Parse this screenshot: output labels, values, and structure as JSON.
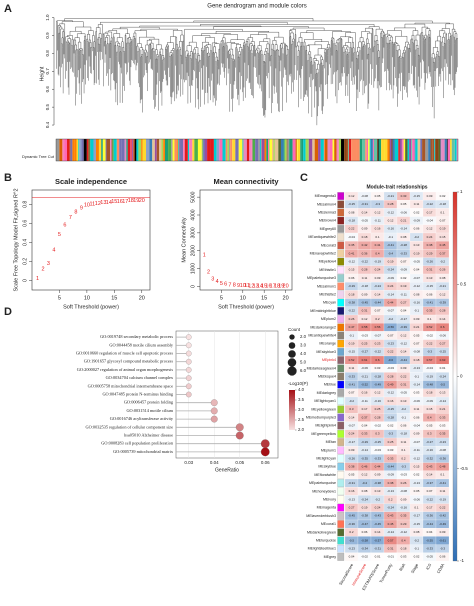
{
  "chart_data": [
    {
      "type": "dendrogram",
      "panel": "A",
      "title": "Gene dendrogram and module colors",
      "ylabel": "Height",
      "ylim": [
        0.35,
        1.02
      ],
      "yticks": [
        0.4,
        0.5,
        0.6,
        0.7,
        0.8,
        0.9,
        {
          "value": 1,
          "label": "1.0"
        }
      ],
      "colorbar_label": "Dynamic Tree Cut"
    },
    {
      "type": "scatter",
      "panel": "B",
      "title": "Scale independence",
      "xlabel": "Soft Threshold (power)",
      "ylabel": "Scale Free Topology Model Fit,signed R^2",
      "color": "#e41a1c",
      "x": [
        1,
        2,
        3,
        4,
        5,
        6,
        7,
        8,
        9,
        10,
        11,
        12,
        13,
        14,
        15,
        16,
        17,
        18,
        19,
        20
      ],
      "values": [
        0.02,
        0.12,
        0.18,
        0.32,
        0.48,
        0.58,
        0.66,
        0.72,
        0.76,
        0.79,
        0.8,
        0.81,
        0.82,
        0.82,
        0.83,
        0.83,
        0.83,
        0.84,
        0.84,
        0.84
      ],
      "hline": 0.87,
      "xlim": [
        0,
        21.5
      ],
      "xticks": [
        5,
        10,
        15,
        20
      ],
      "ylim": [
        -0.1,
        0.95
      ],
      "yticks": [
        0,
        0.2,
        0.4,
        0.6,
        0.8
      ]
    },
    {
      "type": "scatter",
      "title": "Mean connectivity",
      "xlabel": "Soft Threshold (power)",
      "ylabel": "Mean Connectivity",
      "color": "#e41a1c",
      "x": [
        1,
        2,
        3,
        4,
        5,
        6,
        7,
        8,
        9,
        10,
        11,
        12,
        13,
        14,
        15,
        16,
        17,
        18,
        19,
        20
      ],
      "values": [
        1750,
        800,
        420,
        260,
        170,
        120,
        90,
        70,
        55,
        45,
        38,
        32,
        28,
        25,
        22,
        20,
        18,
        16,
        15,
        14
      ],
      "xlim": [
        0,
        21.5
      ],
      "xticks": [
        5,
        10,
        15,
        20
      ],
      "ylim": [
        -200,
        5400
      ],
      "yticks": [
        0,
        1000,
        2000,
        3000,
        4000,
        5000
      ]
    },
    {
      "type": "heatmap",
      "panel": "C",
      "title": "Module-trait relationships",
      "columns": [
        "StromalScore",
        "ImmuneScore",
        "ESTIMATEScore",
        "TumorPurity",
        "Risk",
        "Stage",
        "ICS",
        "CD8A"
      ],
      "rows": [
        "MEmagenta3",
        "MEsalmon4",
        "MEsienna3",
        "MEbrown4",
        "MEgrey60",
        "MEantiquewhite2",
        "MEcoral3",
        "MEnavajowhite2",
        "MEyellow4",
        "MEthistle1",
        "MEpaleturquoise3",
        "MEsalmon1",
        "MEthistle2",
        "MEcyan",
        "MEmidnightblue",
        "MEplum2",
        "MEdarkorange2",
        "MEantiquewhite4",
        "MEorange",
        "MEskyblue3",
        "MEpink4",
        "MEdarkseagreen4",
        "MEbisque4",
        "MEblue",
        "MEdarkgrey",
        "MElightcyan1",
        "MEyellowgreen",
        "MEmediumpurple3",
        "MElightpink4",
        "MEgreenyellow",
        "MEtan",
        "MEplum1",
        "MElightcyan",
        "MEskyblue",
        "MEfloralwhite",
        "MEpaleturquoise",
        "MEhoneydew1",
        "MEivory",
        "MEmagenta",
        "MElavenderblush3",
        "MEcoral1",
        "MEdarkolivegreen",
        "MEturquoise",
        "MElightsteelblue1",
        "MEgrey"
      ],
      "row_colors": [
        "#cd00cd",
        "#8b4c39",
        "#cd6839",
        "#8b2323",
        "#999999",
        "#eedfcc",
        "#cd5b45",
        "#eecfa1",
        "#8b8b00",
        "#ffe1ff",
        "#96cdcd",
        "#ff8c69",
        "#eed2ee",
        "#00ffff",
        "#191970",
        "#eeaeee",
        "#ee7600",
        "#8b8378",
        "#ffa500",
        "#6ca6cd",
        "#8b636c",
        "#698b69",
        "#8b7d6b",
        "#0000ff",
        "#a9a9a9",
        "#e0ffff",
        "#9acd32",
        "#8968cd",
        "#8b5f65",
        "#adff2f",
        "#d2b48c",
        "#ffbbff",
        "#e0ffff",
        "#87ceeb",
        "#fffaf0",
        "#afeeee",
        "#f0fff0",
        "#fffff0",
        "#ff00ff",
        "#cdc1c5",
        "#ff7256",
        "#556b2f",
        "#40e0d0",
        "#cae1ff",
        "#bebebe"
      ],
      "values": [
        [
          0.12,
          -0.08,
          0.05,
          -0.21,
          0.33,
          -0.15,
          0.09,
          0.02
        ],
        [
          -0.25,
          -0.31,
          -0.3,
          0.28,
          0.05,
          0.11,
          -0.22,
          -0.18
        ],
        [
          0.08,
          0.14,
          0.12,
          -0.12,
          -0.06,
          0.02,
          0.17,
          0.1
        ],
        [
          -0.18,
          -0.05,
          -0.11,
          0.12,
          0.21,
          -0.09,
          -0.04,
          0.07
        ],
        [
          0.22,
          0.09,
          0.16,
          -0.16,
          -0.14,
          0.06,
          0.12,
          0.19
        ],
        [
          -0.04,
          0.18,
          0.1,
          -0.1,
          0.08,
          -0.2,
          0.24,
          0.15
        ],
        [
          0.35,
          0.42,
          0.41,
          -0.41,
          -0.28,
          0.13,
          0.38,
          0.45
        ],
        [
          0.41,
          0.36,
          0.4,
          -0.4,
          -0.33,
          0.19,
          0.29,
          0.37
        ],
        [
          -0.12,
          -0.22,
          -0.19,
          0.19,
          0.07,
          -0.05,
          -0.26,
          -0.2
        ],
        [
          0.15,
          0.28,
          0.24,
          -0.24,
          -0.09,
          0.04,
          0.31,
          0.26
        ],
        [
          0.06,
          0.11,
          0.09,
          -0.09,
          0.02,
          -0.07,
          0.13,
          0.08
        ],
        [
          -0.29,
          -0.18,
          -0.24,
          0.24,
          0.19,
          -0.12,
          -0.15,
          -0.21
        ],
        [
          0.18,
          0.09,
          0.14,
          -0.14,
          -0.11,
          0.08,
          0.06,
          0.12
        ],
        [
          -0.38,
          -0.45,
          -0.44,
          0.44,
          0.27,
          -0.16,
          -0.41,
          -0.39
        ],
        [
          -0.22,
          0.31,
          0.07,
          -0.07,
          0.04,
          -0.1,
          0.35,
          0.28
        ],
        [
          0.26,
          0.12,
          0.2,
          -0.2,
          -0.17,
          0.09,
          0.1,
          0.14
        ],
        [
          0.47,
          0.58,
          0.56,
          -0.56,
          -0.39,
          0.21,
          0.52,
          0.6
        ],
        [
          -0.1,
          -0.03,
          -0.07,
          0.07,
          0.12,
          0.05,
          -0.02,
          -0.06
        ],
        [
          0.19,
          0.25,
          0.23,
          -0.23,
          -0.12,
          0.07,
          0.22,
          0.27
        ],
        [
          -0.15,
          -0.27,
          -0.22,
          0.22,
          0.14,
          -0.08,
          -0.3,
          -0.25
        ],
        [
          0.52,
          0.61,
          0.6,
          -0.6,
          -0.44,
          0.18,
          0.57,
          0.63
        ],
        [
          0.11,
          -0.06,
          0.03,
          -0.03,
          0.09,
          -0.13,
          -0.04,
          0.01
        ],
        [
          -0.33,
          -0.21,
          -0.28,
          0.28,
          0.22,
          -0.1,
          -0.19,
          -0.24
        ],
        [
          -0.41,
          -0.52,
          -0.49,
          0.49,
          0.31,
          -0.14,
          -0.48,
          -0.5
        ],
        [
          0.07,
          0.16,
          0.12,
          -0.12,
          -0.05,
          0.03,
          0.18,
          0.13
        ],
        [
          -0.2,
          -0.11,
          -0.16,
          0.16,
          0.13,
          -0.06,
          -0.09,
          -0.14
        ],
        [
          0.3,
          0.17,
          0.25,
          -0.25,
          -0.2,
          0.11,
          0.15,
          0.21
        ],
        [
          0.14,
          0.37,
          0.28,
          -0.28,
          -0.1,
          0.06,
          0.4,
          0.33
        ],
        [
          -0.07,
          0.04,
          -0.02,
          0.02,
          0.06,
          -0.04,
          0.05,
          0.03
        ],
        [
          0.24,
          0.33,
          0.3,
          -0.3,
          -0.18,
          0.09,
          0.3,
          0.35
        ],
        [
          -0.17,
          -0.29,
          -0.25,
          0.25,
          0.11,
          -0.07,
          -0.27,
          -0.23
        ],
        [
          0.09,
          -0.14,
          -0.03,
          0.03,
          0.1,
          -0.11,
          -0.16,
          -0.08
        ],
        [
          -0.26,
          -0.35,
          -0.33,
          0.33,
          0.2,
          -0.12,
          -0.32,
          -0.36
        ],
        [
          0.38,
          0.46,
          0.44,
          -0.44,
          -0.3,
          0.15,
          0.43,
          0.48
        ],
        [
          0.05,
          0.12,
          0.09,
          -0.09,
          -0.03,
          0.02,
          0.14,
          0.1
        ],
        [
          -0.31,
          -0.4,
          -0.38,
          0.38,
          0.26,
          -0.13,
          -0.37,
          -0.41
        ],
        [
          0.16,
          0.08,
          0.13,
          -0.13,
          -0.08,
          0.05,
          0.07,
          0.11
        ],
        [
          -0.13,
          -0.24,
          -0.2,
          0.2,
          0.09,
          -0.06,
          -0.22,
          -0.19
        ],
        [
          0.27,
          0.19,
          0.24,
          -0.24,
          -0.16,
          0.1,
          0.17,
          0.22
        ],
        [
          -0.45,
          -0.38,
          -0.43,
          0.43,
          0.35,
          -0.17,
          -0.36,
          -0.42
        ],
        [
          -0.36,
          -0.47,
          -0.45,
          0.45,
          0.29,
          -0.15,
          -0.44,
          -0.49
        ],
        [
          0.2,
          0.06,
          0.14,
          -0.14,
          -0.12,
          0.08,
          0.04,
          0.09
        ],
        [
          -0.5,
          -0.58,
          -0.57,
          0.57,
          0.4,
          -0.2,
          -0.55,
          -0.61
        ],
        [
          -0.23,
          -0.34,
          -0.31,
          0.31,
          0.18,
          -0.1,
          -0.33,
          -0.3
        ],
        [
          0.04,
          -0.02,
          0.01,
          -0.01,
          0.03,
          0.02,
          -0.05,
          0.06
        ]
      ],
      "zlim": [
        -1,
        1
      ],
      "zticks": [
        1,
        0.5,
        0,
        -0.5,
        -1
      ],
      "color_range": [
        "#2c6db5",
        "#ffffff",
        "#d73027"
      ],
      "highlight_row": 20,
      "highlight_col": 1,
      "highlight_color": "#e41a1c"
    },
    {
      "type": "dot",
      "panel": "D",
      "xlabel": "GeneRatio",
      "categories": [
        "GO:0019748 secondary metabolic process",
        "GO:0044458 motile cilium assembly",
        "GO:0010660 regulation of muscle cell apoptotic process",
        "GO:1901657 glycosyl compound metabolic process",
        "GO:2000027 regulation of animal organ morphogenesis",
        "GO:0034704 calcium channel complex",
        "GO:0005758 mitochondrial intermembrane space",
        "GO:0047485 protein N-terminus binding",
        "GO:0006457 protein folding",
        "GO:0031514 motile cilium",
        "GO:0016746 acyltransferase activity",
        "GO:0032535 regulation of cellular component size",
        "hsa05010 Alzheimer disease",
        "GO:0008283 cell population proliferation",
        "GO:0005739 mitochondrial matrix"
      ],
      "values": [
        0.03,
        0.03,
        0.03,
        0.03,
        0.03,
        0.03,
        0.03,
        0.03,
        0.04,
        0.04,
        0.04,
        0.05,
        0.05,
        0.06,
        0.06
      ],
      "counts": [
        2,
        2,
        2,
        2,
        2,
        2,
        2,
        2,
        3,
        3,
        3,
        4,
        4,
        5,
        5
      ],
      "logp": [
        2,
        2,
        2.05,
        2.1,
        2.1,
        2.15,
        2.2,
        2.25,
        2.4,
        2.5,
        2.6,
        2.9,
        3.2,
        3.6,
        4
      ],
      "xlim": [
        0.025,
        0.065
      ],
      "xticks": [
        0.03,
        0.04,
        0.05,
        0.06
      ],
      "size_title": "Count",
      "size_ticks": [
        {
          "value": 2,
          "label": "2.0"
        },
        {
          "value": 3,
          "label": "3.0"
        },
        {
          "value": 4,
          "label": "4.0"
        },
        {
          "value": 5,
          "label": "5.0"
        },
        {
          "value": 6,
          "label": "6.0"
        }
      ],
      "color_title": "-Log10(P)",
      "clim": [
        2,
        4
      ],
      "cticks": [
        {
          "value": 4,
          "label": "4.0"
        },
        3.5,
        {
          "value": 3,
          "label": "3.0"
        },
        2.5,
        {
          "value": 2,
          "label": "2.0"
        }
      ],
      "color_range": [
        "#f7e1e1",
        "#a50f15"
      ],
      "stem_color": "#b0b0b0"
    }
  ]
}
